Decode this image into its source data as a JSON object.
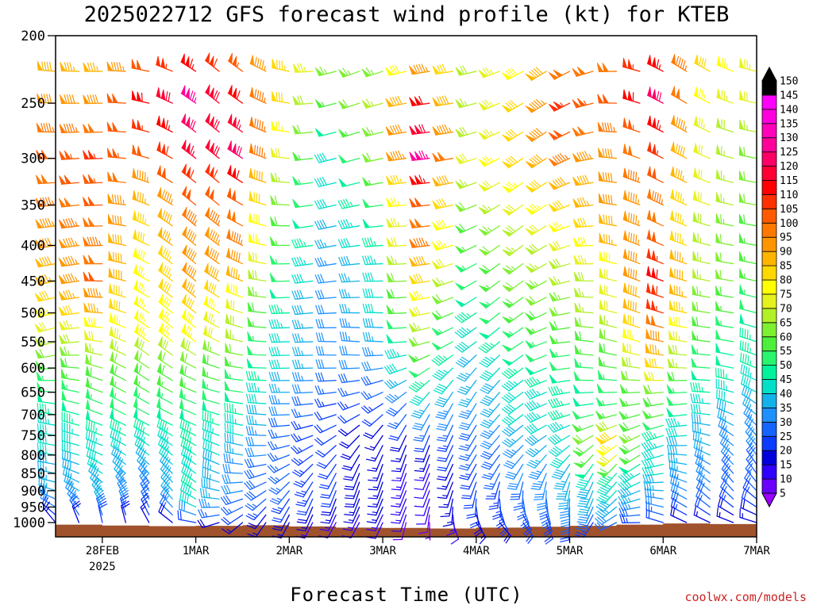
{
  "chart_data": {
    "type": "wind-barb profile",
    "title": "2025022712 GFS forecast wind profile (kt) for KTEB",
    "xlabel": "Forecast Time (UTC)",
    "ylabel": "",
    "credit": "coolwx.com/models",
    "y_axis": {
      "scale": "log-pressure (inverted)",
      "range_hpa": [
        1000,
        200
      ],
      "ticks": [
        200,
        250,
        300,
        350,
        400,
        450,
        500,
        550,
        600,
        650,
        700,
        750,
        800,
        850,
        900,
        950,
        1000
      ]
    },
    "x_axis": {
      "range": [
        "2025-02-27 12Z",
        "2025-03-07 00Z"
      ],
      "ticks": [
        {
          "label": "28FEB",
          "sublabel": "2025",
          "hours": 12
        },
        {
          "label": "1MAR",
          "sublabel": "",
          "hours": 36
        },
        {
          "label": "2MAR",
          "sublabel": "",
          "hours": 60
        },
        {
          "label": "3MAR",
          "sublabel": "",
          "hours": 84
        },
        {
          "label": "4MAR",
          "sublabel": "",
          "hours": 108
        },
        {
          "label": "5MAR",
          "sublabel": "",
          "hours": 132
        },
        {
          "label": "6MAR",
          "sublabel": "",
          "hours": 156
        },
        {
          "label": "7MAR",
          "sublabel": "",
          "hours": 180
        }
      ]
    },
    "colorbar": {
      "units": "kt",
      "levels": [
        5,
        10,
        15,
        20,
        25,
        30,
        35,
        40,
        45,
        50,
        55,
        60,
        65,
        70,
        75,
        80,
        85,
        90,
        95,
        100,
        105,
        110,
        115,
        120,
        125,
        130,
        135,
        140,
        145,
        150
      ],
      "colors": [
        "#9a00ff",
        "#6a00ff",
        "#2f00ff",
        "#0000dd",
        "#0a3cff",
        "#1464ff",
        "#1e90ff",
        "#14b2ea",
        "#00e0c8",
        "#00f29a",
        "#28f56e",
        "#4df03c",
        "#7ef032",
        "#b4f028",
        "#e6f21e",
        "#ffff00",
        "#ffd800",
        "#ffb400",
        "#ff9600",
        "#ff7800",
        "#ff5a00",
        "#ff3000",
        "#ff0000",
        "#ff0033",
        "#ff0066",
        "#ff0099",
        "#ff00bb",
        "#ff00dd",
        "#ff00ff",
        "#000000"
      ]
    },
    "surface_pressure_hpa": [
      {
        "hours": 0,
        "p": 1007
      },
      {
        "hours": 12,
        "p": 1010
      },
      {
        "hours": 24,
        "p": 1012
      },
      {
        "hours": 36,
        "p": 1011
      },
      {
        "hours": 48,
        "p": 1009
      },
      {
        "hours": 60,
        "p": 1013
      },
      {
        "hours": 72,
        "p": 1017
      },
      {
        "hours": 84,
        "p": 1018
      },
      {
        "hours": 96,
        "p": 1020
      },
      {
        "hours": 108,
        "p": 1017
      },
      {
        "hours": 120,
        "p": 1014
      },
      {
        "hours": 132,
        "p": 1011
      },
      {
        "hours": 144,
        "p": 1007
      },
      {
        "hours": 156,
        "p": 1003
      },
      {
        "hours": 168,
        "p": 1005
      },
      {
        "hours": 180,
        "p": 1008
      }
    ],
    "wind_speed_profile_kt": {
      "description": "representative speeds by pressure level and forecast hour (estimated)",
      "hours": [
        0,
        12,
        24,
        36,
        48,
        60,
        72,
        84,
        96,
        108,
        120,
        132,
        144,
        156,
        168,
        180
      ],
      "levels": {
        "200": [
          85,
          80,
          90,
          100,
          95,
          85,
          70,
          60,
          75,
          70,
          75,
          90,
          95,
          105,
          85,
          75
        ],
        "250": [
          90,
          90,
          110,
          125,
          110,
          80,
          55,
          65,
          110,
          65,
          80,
          105,
          100,
          120,
          75,
          70
        ],
        "300": [
          100,
          105,
          100,
          115,
          120,
          70,
          40,
          60,
          125,
          70,
          80,
          95,
          90,
          105,
          70,
          60
        ],
        "350": [
          95,
          100,
          85,
          100,
          100,
          60,
          40,
          50,
          100,
          60,
          70,
          80,
          90,
          95,
          70,
          60
        ],
        "400": [
          90,
          95,
          80,
          90,
          95,
          55,
          35,
          45,
          95,
          55,
          65,
          70,
          85,
          100,
          65,
          55
        ],
        "450": [
          85,
          100,
          75,
          90,
          85,
          50,
          30,
          40,
          80,
          50,
          60,
          65,
          70,
          110,
          65,
          55
        ],
        "500": [
          75,
          85,
          75,
          80,
          70,
          45,
          30,
          40,
          70,
          45,
          55,
          60,
          70,
          105,
          60,
          50
        ],
        "550": [
          65,
          70,
          75,
          75,
          65,
          40,
          30,
          35,
          60,
          40,
          50,
          55,
          60,
          90,
          55,
          45
        ],
        "600": [
          55,
          60,
          60,
          60,
          55,
          40,
          30,
          30,
          50,
          35,
          45,
          50,
          55,
          80,
          50,
          45
        ],
        "650": [
          50,
          55,
          55,
          55,
          50,
          35,
          25,
          25,
          40,
          35,
          40,
          45,
          50,
          60,
          45,
          40
        ],
        "700": [
          45,
          50,
          50,
          50,
          45,
          30,
          20,
          20,
          30,
          30,
          40,
          45,
          55,
          55,
          40,
          35
        ],
        "750": [
          40,
          45,
          45,
          45,
          40,
          25,
          20,
          15,
          20,
          25,
          35,
          40,
          80,
          45,
          35,
          30
        ],
        "800": [
          40,
          40,
          40,
          45,
          35,
          25,
          20,
          15,
          15,
          25,
          30,
          40,
          70,
          40,
          35,
          30
        ],
        "850": [
          35,
          40,
          35,
          40,
          30,
          25,
          20,
          15,
          10,
          20,
          30,
          35,
          45,
          40,
          30,
          25
        ],
        "900": [
          35,
          35,
          30,
          45,
          30,
          25,
          20,
          15,
          10,
          20,
          25,
          35,
          40,
          35,
          30,
          25
        ],
        "950": [
          30,
          35,
          25,
          40,
          25,
          20,
          15,
          15,
          10,
          20,
          25,
          30,
          35,
          30,
          25,
          20
        ],
        "1000": [
          15,
          20,
          15,
          20,
          15,
          15,
          10,
          10,
          5,
          15,
          20,
          20,
          25,
          20,
          15,
          15
        ]
      }
    }
  }
}
